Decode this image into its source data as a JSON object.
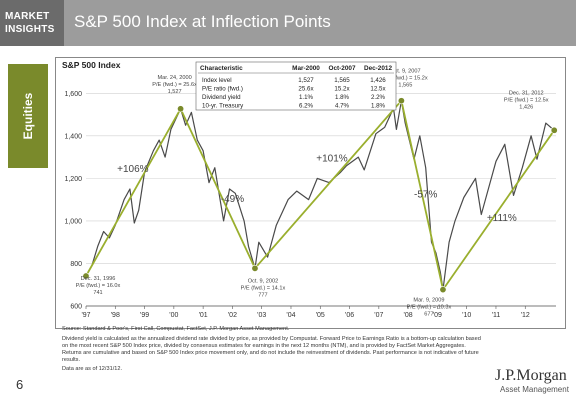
{
  "header": {
    "brand_line1": "MARKET",
    "brand_line2": "INSIGHTS",
    "title": "S&P 500 Index at Inflection Points"
  },
  "side_tab": {
    "label": "Equities"
  },
  "colors": {
    "series": "#4a4a4a",
    "trend": "#9aaf2e",
    "marker": "#7a8a2b",
    "sidetab": "#7a8a2b",
    "header": "#9c9c9c"
  },
  "table": {
    "headers": [
      "Characteristic",
      "Mar-2000",
      "Oct-2007",
      "Dec-2012"
    ],
    "rows": [
      [
        "Index level",
        "1,527",
        "1,565",
        "1,426"
      ],
      [
        "P/E ratio (fwd.)",
        "25.6x",
        "15.2x",
        "12.5x"
      ],
      [
        "Dividend yield",
        "1.1%",
        "1.8%",
        "2.2%"
      ],
      [
        "10-yr. Treasury",
        "6.2%",
        "4.7%",
        "1.8%"
      ]
    ]
  },
  "chart_data": {
    "type": "line",
    "title": "S&P 500 Index",
    "xlabel": "",
    "ylabel": "",
    "xlim": [
      1997.0,
      2013.05
    ],
    "ylim": [
      600,
      1700
    ],
    "grid": true,
    "xticks": [
      1997,
      1998,
      1999,
      2000,
      2001,
      2002,
      2003,
      2004,
      2005,
      2006,
      2007,
      2008,
      2009,
      2010,
      2011,
      2012
    ],
    "xtick_labels": [
      "'97",
      "'98",
      "'99",
      "'00",
      "'01",
      "'02",
      "'03",
      "'04",
      "'05",
      "'06",
      "'07",
      "'08",
      "'09",
      "'10",
      "'11",
      "'12"
    ],
    "yticks": [
      600,
      800,
      1000,
      1200,
      1400,
      1600
    ],
    "ytick_labels": [
      "600",
      "800",
      "1,000",
      "1,200",
      "1,400",
      "1,600"
    ],
    "series": [
      {
        "values": [
          [
            1997.0,
            741
          ],
          [
            1997.2,
            790
          ],
          [
            1997.4,
            880
          ],
          [
            1997.6,
            950
          ],
          [
            1997.8,
            920
          ],
          [
            1998.0,
            980
          ],
          [
            1998.3,
            1100
          ],
          [
            1998.5,
            1150
          ],
          [
            1998.65,
            990
          ],
          [
            1998.8,
            1050
          ],
          [
            1999.0,
            1230
          ],
          [
            1999.3,
            1330
          ],
          [
            1999.5,
            1380
          ],
          [
            1999.7,
            1300
          ],
          [
            1999.9,
            1430
          ],
          [
            2000.23,
            1527
          ],
          [
            2000.4,
            1450
          ],
          [
            2000.6,
            1510
          ],
          [
            2000.8,
            1380
          ],
          [
            2001.0,
            1330
          ],
          [
            2001.2,
            1180
          ],
          [
            2001.4,
            1250
          ],
          [
            2001.7,
            1000
          ],
          [
            2001.9,
            1150
          ],
          [
            2002.1,
            1130
          ],
          [
            2002.4,
            1000
          ],
          [
            2002.55,
            880
          ],
          [
            2002.77,
            777
          ],
          [
            2002.9,
            900
          ],
          [
            2003.2,
            830
          ],
          [
            2003.5,
            980
          ],
          [
            2003.9,
            1100
          ],
          [
            2004.2,
            1140
          ],
          [
            2004.6,
            1100
          ],
          [
            2004.9,
            1200
          ],
          [
            2005.3,
            1180
          ],
          [
            2005.7,
            1230
          ],
          [
            2005.9,
            1260
          ],
          [
            2006.3,
            1300
          ],
          [
            2006.5,
            1240
          ],
          [
            2006.9,
            1410
          ],
          [
            2007.2,
            1440
          ],
          [
            2007.5,
            1530
          ],
          [
            2007.6,
            1430
          ],
          [
            2007.77,
            1565
          ],
          [
            2007.9,
            1460
          ],
          [
            2008.2,
            1290
          ],
          [
            2008.4,
            1400
          ],
          [
            2008.6,
            1250
          ],
          [
            2008.8,
            900
          ],
          [
            2008.95,
            850
          ],
          [
            2009.1,
            760
          ],
          [
            2009.19,
            677
          ],
          [
            2009.4,
            900
          ],
          [
            2009.6,
            1000
          ],
          [
            2009.9,
            1110
          ],
          [
            2010.3,
            1200
          ],
          [
            2010.5,
            1030
          ],
          [
            2010.8,
            1180
          ],
          [
            2011.0,
            1280
          ],
          [
            2011.3,
            1360
          ],
          [
            2011.6,
            1120
          ],
          [
            2011.9,
            1250
          ],
          [
            2012.2,
            1400
          ],
          [
            2012.4,
            1290
          ],
          [
            2012.7,
            1460
          ],
          [
            2012.99,
            1426
          ]
        ]
      }
    ],
    "trend_points": [
      [
        1997.0,
        741
      ],
      [
        2000.23,
        1527
      ],
      [
        2002.77,
        777
      ],
      [
        2007.77,
        1565
      ],
      [
        2009.19,
        677
      ],
      [
        2012.99,
        1426
      ]
    ],
    "peak_labels": [
      {
        "x": 1997.0,
        "y": 741,
        "lines": [
          "Dec. 31, 1996",
          "P/E (fwd.) = 16.0x",
          "741"
        ]
      },
      {
        "x": 2000.23,
        "y": 1527,
        "lines": [
          "Mar. 24, 2000",
          "P/E (fwd.) = 25.6x",
          "1,527"
        ]
      },
      {
        "x": 2002.77,
        "y": 777,
        "lines": [
          "Oct. 9, 2002",
          "P/E (fwd.) = 14.1x",
          "777"
        ]
      },
      {
        "x": 2007.77,
        "y": 1565,
        "lines": [
          "Oct. 9, 2007",
          "P/E (fwd.) = 15.2x",
          "1,565"
        ]
      },
      {
        "x": 2009.19,
        "y": 677,
        "lines": [
          "Mar. 9, 2009",
          "P/E (fwd.) = 10.3x",
          "677"
        ]
      },
      {
        "x": 2012.99,
        "y": 1426,
        "lines": [
          "Dec. 31, 2012",
          "P/E (fwd.) = 12.5x",
          "1,426"
        ]
      }
    ],
    "annotations": [
      "+106%",
      "-49%",
      "+101%",
      "-57%",
      "+111%"
    ]
  },
  "footnotes": {
    "source": "Source: Standard & Poor's, First Call, Compustat, FactSet, J.P. Morgan Asset Management.",
    "note1": "Dividend yield is calculated as the annualized dividend rate divided by price, as provided by Compustat. Forward Price to Earnings Ratio is a bottom-up calculation based",
    "note2": "on the most recent S&P 500 Index price, divided by consensus estimates for earnings in the next 12 months (NTM), and is provided by FactSet Market Aggregates.",
    "note3": "Returns are cumulative and based on S&P 500 Index price movement only, and do not include the reinvestment of dividends. Past performance is not indicative of future",
    "note4": "results.",
    "asof": "Data are as of 12/31/12."
  },
  "page_number": "6",
  "logo": {
    "name": "J.P.Morgan",
    "sub": "Asset Management"
  }
}
